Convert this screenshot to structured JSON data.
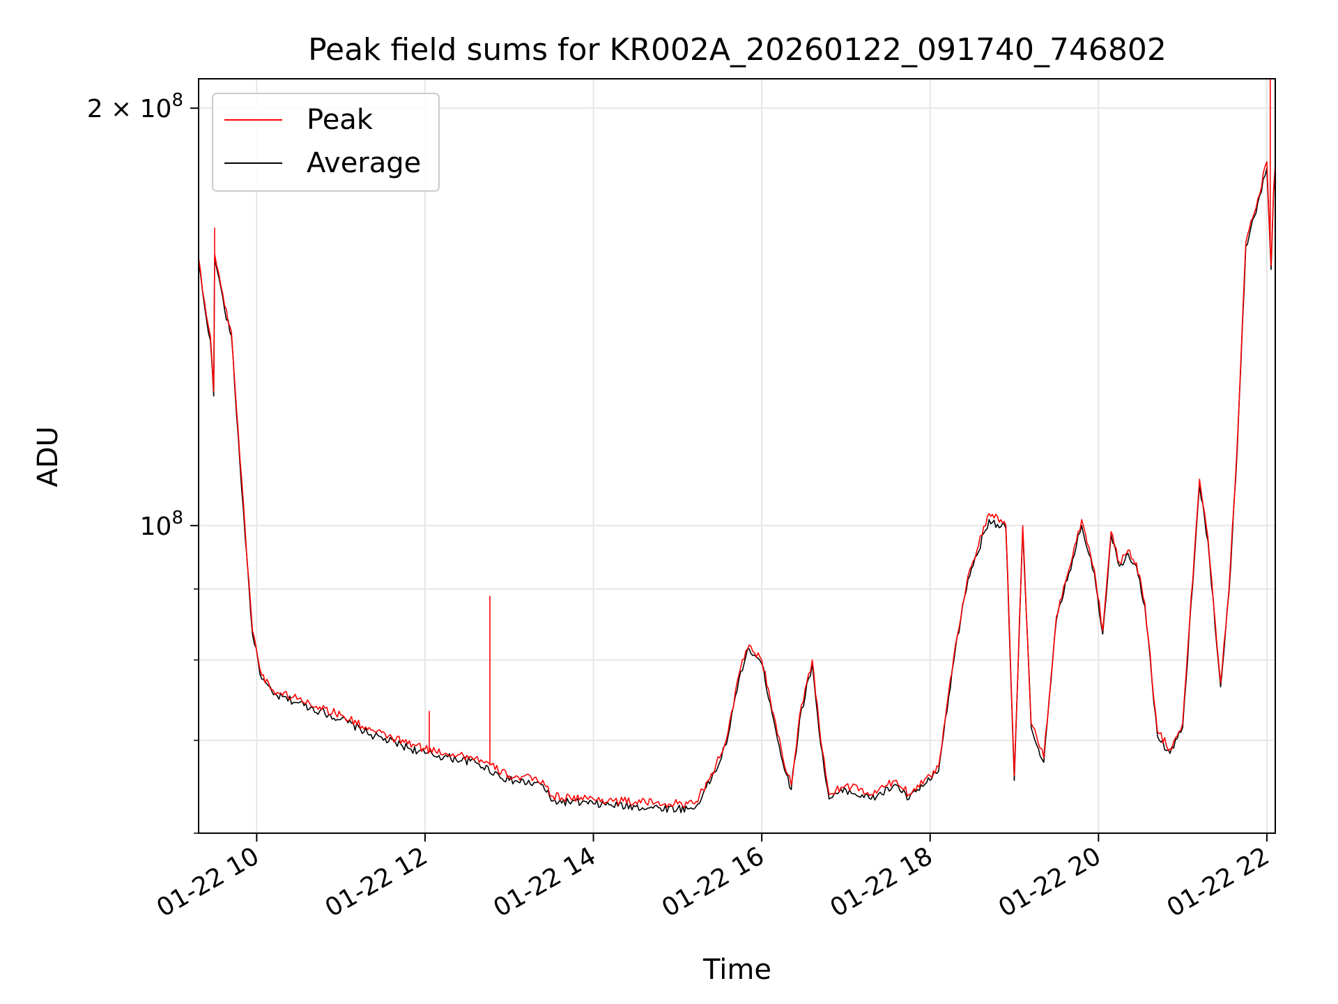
{
  "chart_data": {
    "type": "line",
    "title": "Peak field sums for KR002A_20260122_091740_746802",
    "xlabel": "Time",
    "ylabel": "ADU",
    "yscale": "log",
    "xlim_hours": [
      9.31,
      22.1
    ],
    "ylim": [
      60000000,
      210000000
    ],
    "grid": true,
    "legend_position": "upper-left",
    "x_tick_labels": [
      "01-22 10",
      "01-22 12",
      "01-22 14",
      "01-22 16",
      "01-22 18",
      "01-22 20",
      "01-22 22"
    ],
    "x_tick_hours": [
      10,
      12,
      14,
      16,
      18,
      20,
      22
    ],
    "y_major_ticks": [
      {
        "value": 100000000,
        "base": "10",
        "exp": "8"
      },
      {
        "value": 200000000,
        "base": "2 × 10",
        "exp": "8"
      }
    ],
    "y_minor_ticks": [
      60000000,
      70000000,
      80000000,
      90000000
    ],
    "x_hours": [
      9.31,
      9.38,
      9.45,
      9.49,
      9.5,
      9.55,
      9.62,
      9.7,
      9.8,
      9.95,
      10.06,
      10.2,
      10.5,
      10.75,
      11.0,
      11.4,
      12.0,
      12.6,
      13.0,
      13.4,
      13.5,
      13.52,
      14.0,
      14.5,
      15.0,
      15.2,
      15.3,
      15.5,
      15.6,
      15.75,
      15.85,
      16.0,
      16.1,
      16.25,
      16.35,
      16.45,
      16.6,
      16.7,
      16.8,
      17.0,
      17.3,
      17.6,
      17.75,
      17.85,
      18.0,
      18.1,
      18.3,
      18.45,
      18.7,
      18.9,
      19.0,
      19.1,
      19.2,
      19.35,
      19.5,
      19.65,
      19.8,
      19.95,
      20.05,
      20.15,
      20.25,
      20.35,
      20.45,
      20.55,
      20.7,
      20.85,
      21.0,
      21.2,
      21.3,
      21.45,
      21.55,
      21.65,
      21.75,
      21.85,
      22.0,
      22.05,
      22.08,
      22.1
    ],
    "series": [
      {
        "name": "Peak",
        "color": "#ff0000",
        "values": [
          156000000,
          145000000,
          137000000,
          125000000,
          157000000,
          152000000,
          144000000,
          138000000,
          112000000,
          84000000,
          78000000,
          76000000,
          75000000,
          74000000,
          73000000,
          71000000,
          69000000,
          68000000,
          66000000,
          65500000,
          63800000,
          63800000,
          63500000,
          63200000,
          63000000,
          63000000,
          64500000,
          68000000,
          71000000,
          79000000,
          82000000,
          80000000,
          75000000,
          68000000,
          65000000,
          73000000,
          80000000,
          70000000,
          64000000,
          65000000,
          64000000,
          65500000,
          64000000,
          65000000,
          66000000,
          67000000,
          82000000,
          92000000,
          102000000,
          100000000,
          66000000,
          100000000,
          72000000,
          68000000,
          86000000,
          93000000,
          101000000,
          93000000,
          84000000,
          99000000,
          94000000,
          96000000,
          94000000,
          88000000,
          71000000,
          69000000,
          72000000,
          108000000,
          98000000,
          77000000,
          90000000,
          115000000,
          160000000,
          168000000,
          183000000,
          154000000,
          175000000,
          182000000
        ]
      },
      {
        "name": "Average",
        "color": "#000000",
        "values": [
          155000000,
          144000000,
          136000000,
          124000000,
          156000000,
          151000000,
          143000000,
          137000000,
          111000000,
          83500000,
          77500000,
          75500000,
          74500000,
          73500000,
          72500000,
          70500000,
          68500000,
          67500000,
          65500000,
          65000000,
          63300000,
          63300000,
          63000000,
          62700000,
          62500000,
          62500000,
          64000000,
          67500000,
          70500000,
          78500000,
          81500000,
          79500000,
          74500000,
          67500000,
          64500000,
          72500000,
          79500000,
          69500000,
          63500000,
          64500000,
          63500000,
          65000000,
          63500000,
          64500000,
          65500000,
          66500000,
          81500000,
          91500000,
          101000000,
          99500000,
          65500000,
          99500000,
          71500000,
          67500000,
          85500000,
          92500000,
          100000000,
          92500000,
          83500000,
          98500000,
          93500000,
          95500000,
          93500000,
          87500000,
          70500000,
          68500000,
          71500000,
          107000000,
          97500000,
          76500000,
          89500000,
          114000000,
          159000000,
          167000000,
          181000000,
          153000000,
          174000000,
          181000000
        ]
      }
    ],
    "spikes": [
      {
        "series": "Peak",
        "x_hour": 9.5,
        "value": 164000000
      },
      {
        "series": "Peak",
        "x_hour": 12.05,
        "value": 73500000
      },
      {
        "series": "Peak",
        "x_hour": 12.77,
        "value": 89000000
      },
      {
        "series": "Peak",
        "x_hour": 22.04,
        "value": 210000000
      }
    ]
  }
}
